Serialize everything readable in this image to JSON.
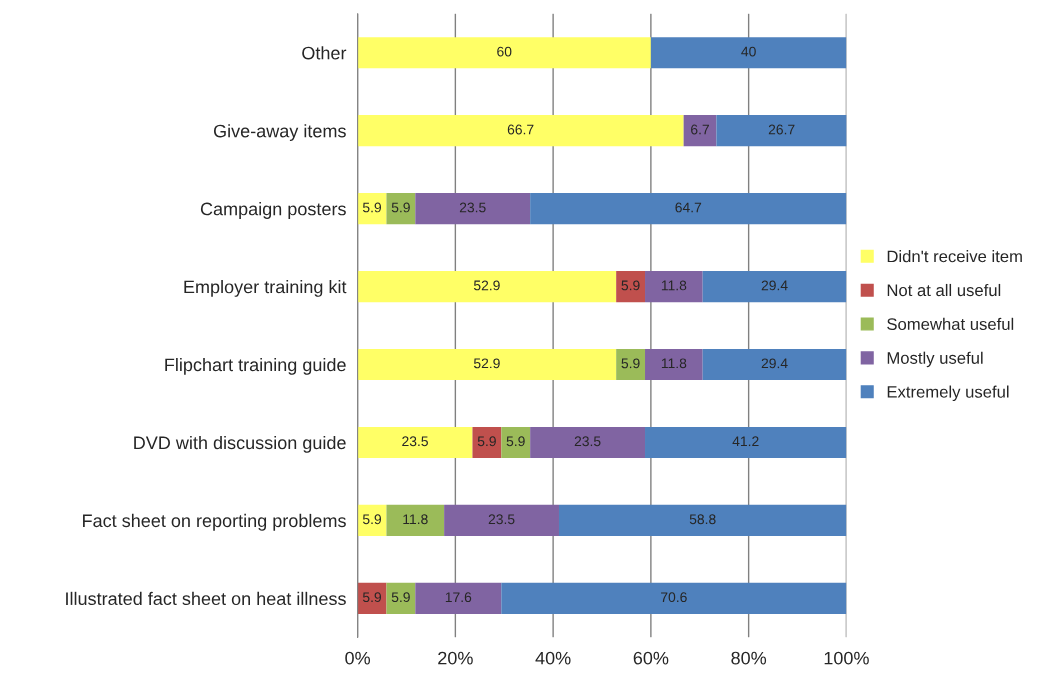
{
  "chart_data": {
    "type": "bar",
    "orientation": "horizontal",
    "stacked": true,
    "categories": [
      "Other",
      "Give-away items",
      "Campaign posters",
      "Employer training kit",
      "Flipchart training guide",
      "DVD with discussion guide",
      "Fact sheet on reporting problems",
      "Illustrated fact sheet on heat illness"
    ],
    "series": [
      {
        "name": "Didn't receive item",
        "color": "#ffff66",
        "values": [
          60,
          66.7,
          5.9,
          52.9,
          52.9,
          23.5,
          5.9,
          null
        ]
      },
      {
        "name": "Not at all useful",
        "color": "#c0504d",
        "values": [
          null,
          null,
          null,
          5.9,
          null,
          5.9,
          null,
          5.9
        ]
      },
      {
        "name": "Somewhat useful",
        "color": "#9bbb59",
        "values": [
          null,
          null,
          5.9,
          null,
          5.9,
          5.9,
          11.8,
          5.9
        ]
      },
      {
        "name": "Mostly useful",
        "color": "#8064a2",
        "values": [
          null,
          6.7,
          23.5,
          11.8,
          11.8,
          23.5,
          23.5,
          17.6
        ]
      },
      {
        "name": "Extremely useful",
        "color": "#4f81bd",
        "values": [
          40,
          26.7,
          64.7,
          29.4,
          29.4,
          41.2,
          58.8,
          70.6
        ]
      }
    ],
    "xlim": [
      0,
      100
    ],
    "xticks": [
      {
        "value": 0,
        "label": "0%"
      },
      {
        "value": 20,
        "label": "20%"
      },
      {
        "value": 40,
        "label": "40%"
      },
      {
        "value": 60,
        "label": "60%"
      },
      {
        "value": 80,
        "label": "80%"
      },
      {
        "value": 100,
        "label": "100%"
      }
    ],
    "grid": "x",
    "legend": "right",
    "data_labels": true
  }
}
